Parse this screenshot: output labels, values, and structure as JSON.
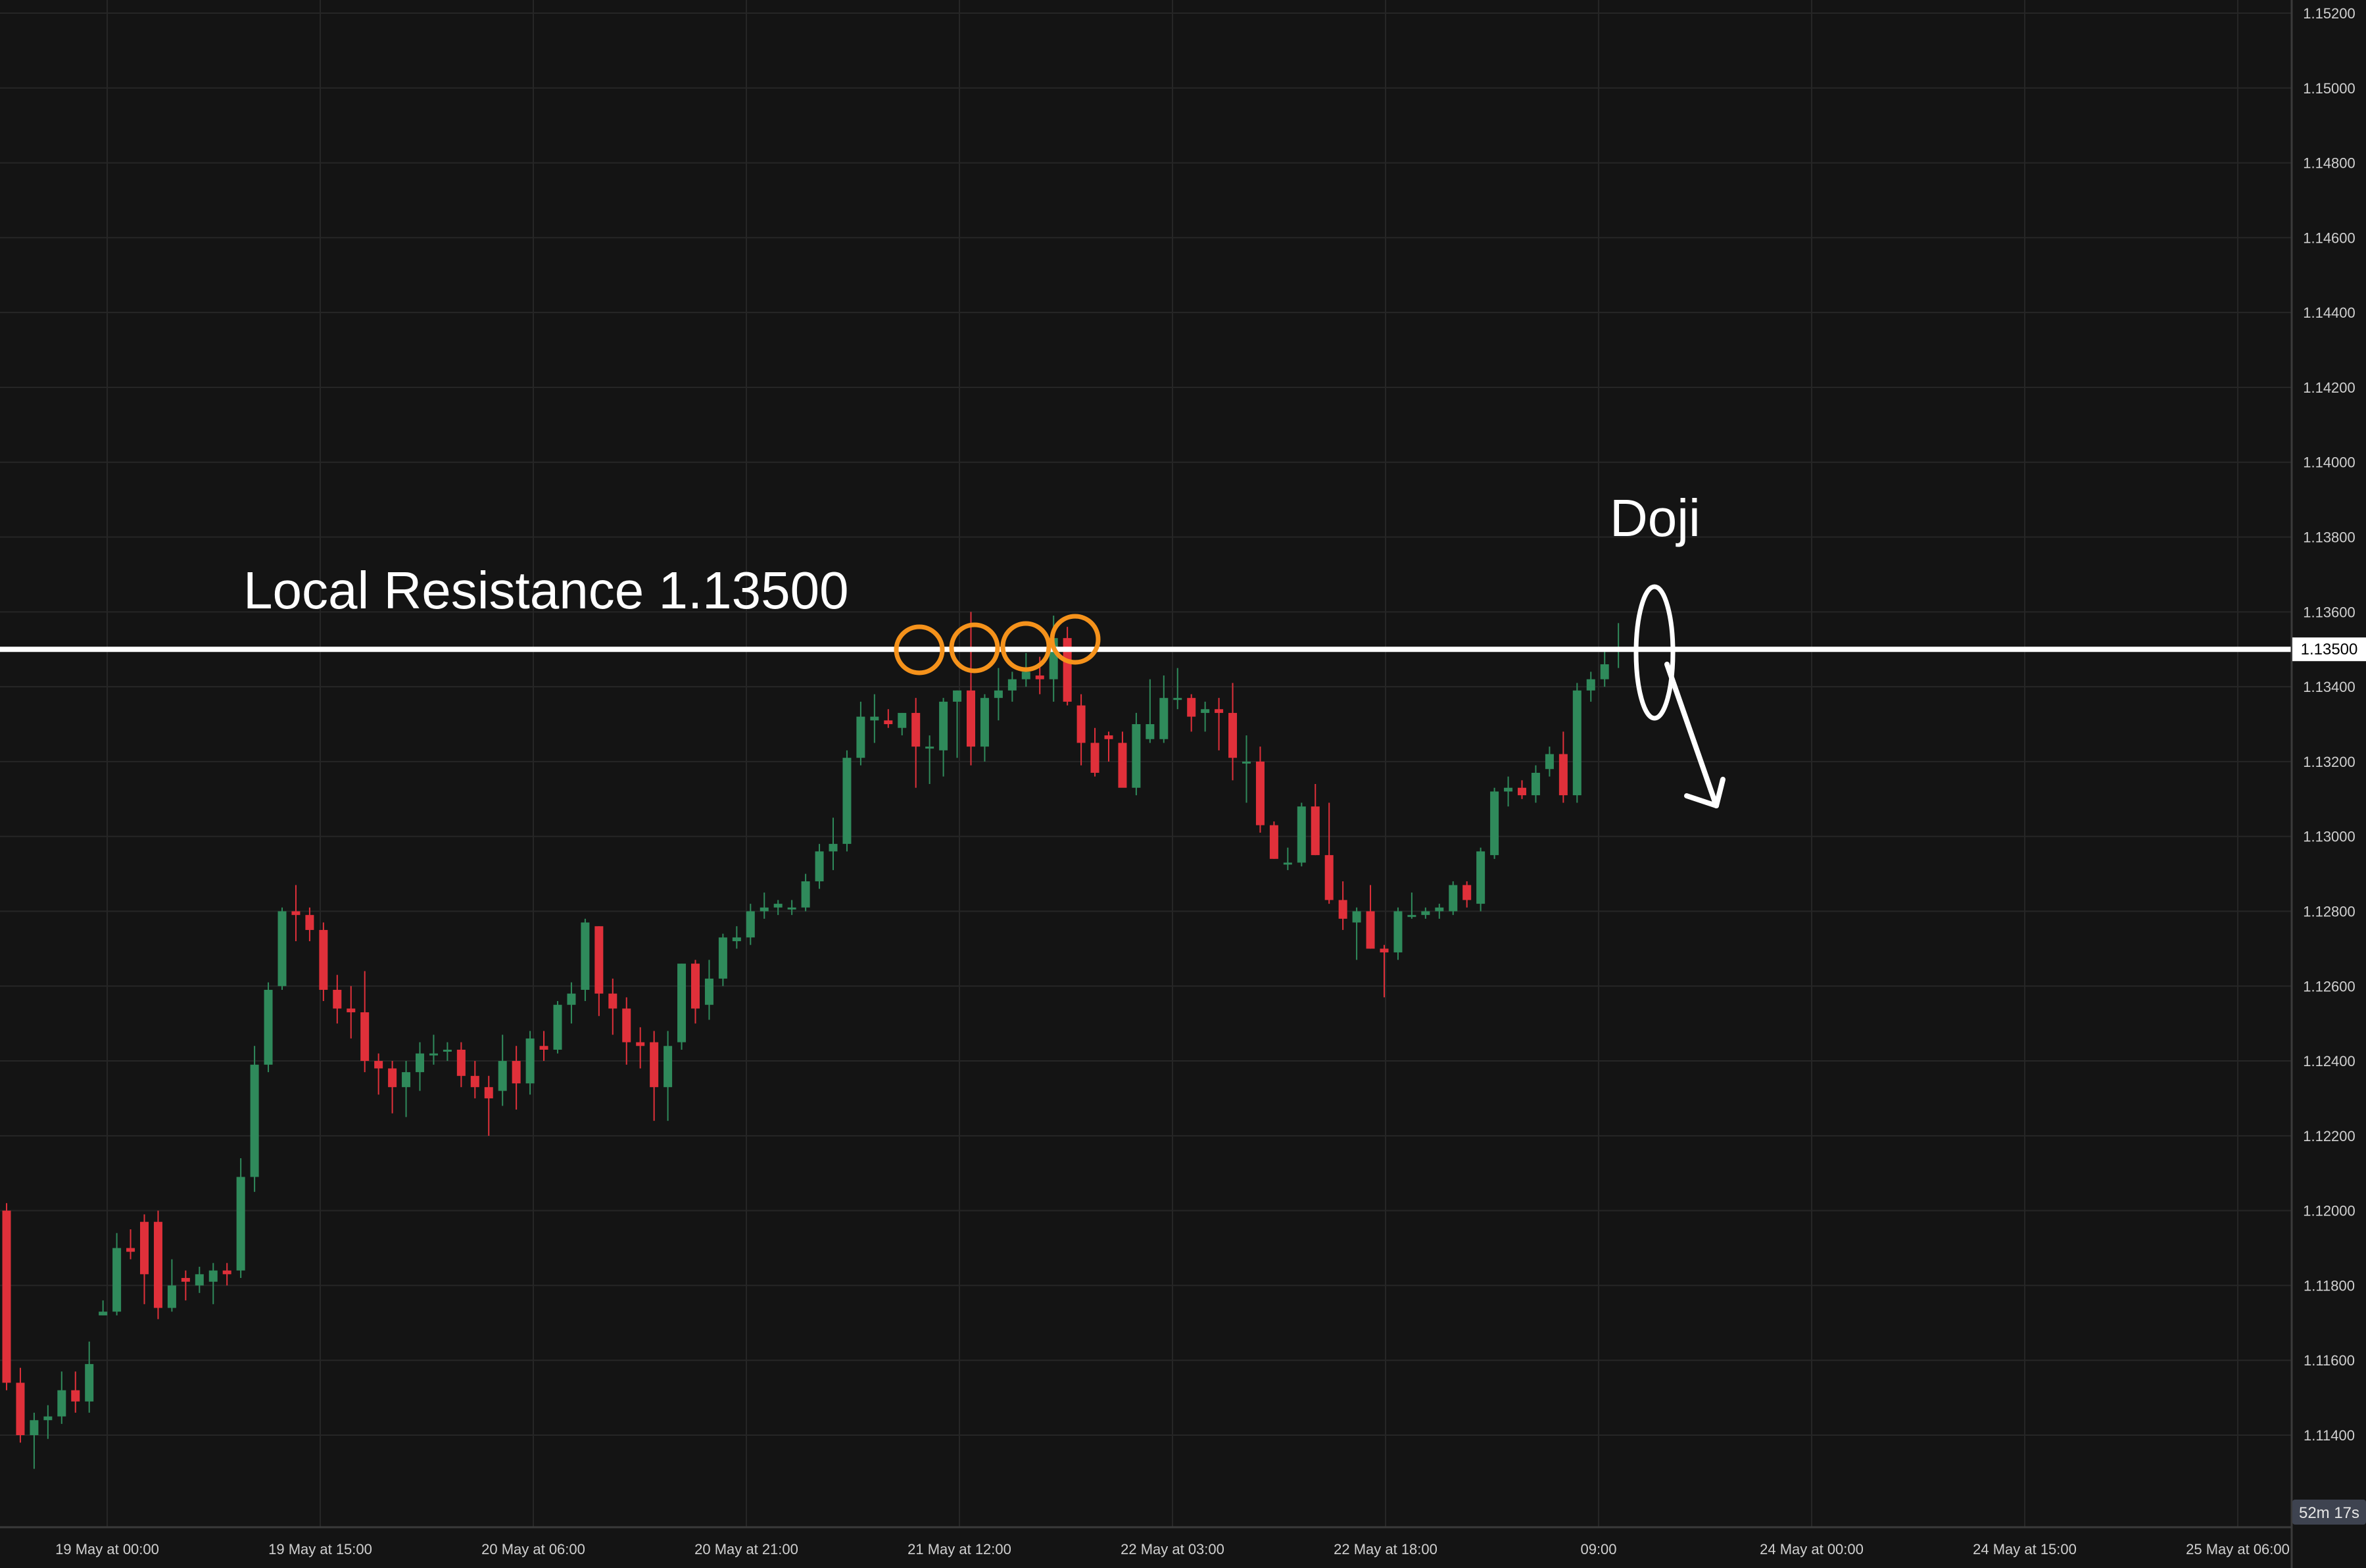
{
  "colors": {
    "background": "#141414",
    "grid": "#262626",
    "up": "#2f8a5b",
    "down": "#e0303a",
    "axis_text": "#d0d0d0",
    "resistance_line": "#ffffff",
    "marker_orange": "#f5921b"
  },
  "annotations": {
    "resistance_label": "Local Resistance 1.13500",
    "doji_label": "Doji"
  },
  "price_tag": "1.13500",
  "countdown": "52m 17s",
  "chart_data": {
    "type": "candlestick",
    "y_axis": {
      "ticks": [
        "1.15200",
        "1.15000",
        "1.14800",
        "1.14600",
        "1.14400",
        "1.14200",
        "1.14000",
        "1.13800",
        "1.13600",
        "1.13400",
        "1.13200",
        "1.13000",
        "1.12800",
        "1.12600",
        "1.12400",
        "1.12200",
        "1.12000",
        "1.11800",
        "1.11600",
        "1.11400"
      ],
      "range": [
        1.1125,
        1.1525
      ]
    },
    "x_axis": {
      "ticks": [
        "19 May at 00:00",
        "19 May at 15:00",
        "20 May at 06:00",
        "20 May at 21:00",
        "21 May at 12:00",
        "22 May at 03:00",
        "22 May at 18:00",
        "09:00",
        "24 May at 00:00",
        "24 May at 15:00",
        "25 May at 06:00"
      ]
    },
    "resistance_level": 1.135,
    "grid": true,
    "candles": [
      {
        "o": 1.12,
        "h": 1.1202,
        "l": 1.1152,
        "c": 1.1154
      },
      {
        "o": 1.1154,
        "h": 1.1158,
        "l": 1.1138,
        "c": 1.114
      },
      {
        "o": 1.114,
        "h": 1.1146,
        "l": 1.1131,
        "c": 1.1144
      },
      {
        "o": 1.1144,
        "h": 1.1148,
        "l": 1.1139,
        "c": 1.1145
      },
      {
        "o": 1.1145,
        "h": 1.1157,
        "l": 1.1143,
        "c": 1.1152
      },
      {
        "o": 1.1152,
        "h": 1.1157,
        "l": 1.1146,
        "c": 1.1149
      },
      {
        "o": 1.1149,
        "h": 1.1165,
        "l": 1.1146,
        "c": 1.1159
      },
      {
        "o": 1.1172,
        "h": 1.1176,
        "l": 1.1172,
        "c": 1.1173
      },
      {
        "o": 1.1173,
        "h": 1.1194,
        "l": 1.1172,
        "c": 1.119
      },
      {
        "o": 1.119,
        "h": 1.1195,
        "l": 1.1187,
        "c": 1.1189
      },
      {
        "o": 1.1197,
        "h": 1.1199,
        "l": 1.1175,
        "c": 1.1183
      },
      {
        "o": 1.1197,
        "h": 1.12,
        "l": 1.1171,
        "c": 1.1174
      },
      {
        "o": 1.1174,
        "h": 1.1187,
        "l": 1.1173,
        "c": 1.118
      },
      {
        "o": 1.1182,
        "h": 1.1184,
        "l": 1.1176,
        "c": 1.1181
      },
      {
        "o": 1.118,
        "h": 1.1185,
        "l": 1.1178,
        "c": 1.1183
      },
      {
        "o": 1.1181,
        "h": 1.1186,
        "l": 1.1175,
        "c": 1.1184
      },
      {
        "o": 1.1184,
        "h": 1.1186,
        "l": 1.118,
        "c": 1.1183
      },
      {
        "o": 1.1184,
        "h": 1.1214,
        "l": 1.1182,
        "c": 1.1209
      },
      {
        "o": 1.1209,
        "h": 1.1244,
        "l": 1.1205,
        "c": 1.1239
      },
      {
        "o": 1.1239,
        "h": 1.1261,
        "l": 1.1237,
        "c": 1.1259
      },
      {
        "o": 1.126,
        "h": 1.1281,
        "l": 1.1259,
        "c": 1.128
      },
      {
        "o": 1.128,
        "h": 1.1287,
        "l": 1.1272,
        "c": 1.1279
      },
      {
        "o": 1.1279,
        "h": 1.1281,
        "l": 1.1272,
        "c": 1.1275
      },
      {
        "o": 1.1275,
        "h": 1.1277,
        "l": 1.1256,
        "c": 1.1259
      },
      {
        "o": 1.1259,
        "h": 1.1263,
        "l": 1.125,
        "c": 1.1254
      },
      {
        "o": 1.1254,
        "h": 1.126,
        "l": 1.1246,
        "c": 1.1253
      },
      {
        "o": 1.1253,
        "h": 1.1264,
        "l": 1.1237,
        "c": 1.124
      },
      {
        "o": 1.124,
        "h": 1.1242,
        "l": 1.1231,
        "c": 1.1238
      },
      {
        "o": 1.1238,
        "h": 1.124,
        "l": 1.1226,
        "c": 1.1233
      },
      {
        "o": 1.1233,
        "h": 1.124,
        "l": 1.1225,
        "c": 1.1237
      },
      {
        "o": 1.1237,
        "h": 1.1245,
        "l": 1.1232,
        "c": 1.1242
      },
      {
        "o": 1.1242,
        "h": 1.1247,
        "l": 1.1239,
        "c": 1.1242
      },
      {
        "o": 1.1243,
        "h": 1.1245,
        "l": 1.124,
        "c": 1.1243
      },
      {
        "o": 1.1243,
        "h": 1.1245,
        "l": 1.1233,
        "c": 1.1236
      },
      {
        "o": 1.1236,
        "h": 1.124,
        "l": 1.123,
        "c": 1.1233
      },
      {
        "o": 1.1233,
        "h": 1.1236,
        "l": 1.122,
        "c": 1.123
      },
      {
        "o": 1.1232,
        "h": 1.1247,
        "l": 1.1228,
        "c": 1.124
      },
      {
        "o": 1.124,
        "h": 1.1244,
        "l": 1.1227,
        "c": 1.1234
      },
      {
        "o": 1.1234,
        "h": 1.1248,
        "l": 1.1231,
        "c": 1.1246
      },
      {
        "o": 1.1244,
        "h": 1.1248,
        "l": 1.124,
        "c": 1.1243
      },
      {
        "o": 1.1243,
        "h": 1.1256,
        "l": 1.1242,
        "c": 1.1255
      },
      {
        "o": 1.1255,
        "h": 1.1261,
        "l": 1.125,
        "c": 1.1258
      },
      {
        "o": 1.1259,
        "h": 1.1278,
        "l": 1.1256,
        "c": 1.1277
      },
      {
        "o": 1.1276,
        "h": 1.1276,
        "l": 1.1252,
        "c": 1.1258
      },
      {
        "o": 1.1258,
        "h": 1.1262,
        "l": 1.1247,
        "c": 1.1254
      },
      {
        "o": 1.1254,
        "h": 1.1257,
        "l": 1.1239,
        "c": 1.1245
      },
      {
        "o": 1.1245,
        "h": 1.1249,
        "l": 1.1238,
        "c": 1.1244
      },
      {
        "o": 1.1245,
        "h": 1.1248,
        "l": 1.1224,
        "c": 1.1233
      },
      {
        "o": 1.1233,
        "h": 1.1248,
        "l": 1.1224,
        "c": 1.1244
      },
      {
        "o": 1.1245,
        "h": 1.1266,
        "l": 1.1243,
        "c": 1.1266
      },
      {
        "o": 1.1266,
        "h": 1.1267,
        "l": 1.125,
        "c": 1.1254
      },
      {
        "o": 1.1255,
        "h": 1.1267,
        "l": 1.1251,
        "c": 1.1262
      },
      {
        "o": 1.1262,
        "h": 1.1274,
        "l": 1.126,
        "c": 1.1273
      },
      {
        "o": 1.1272,
        "h": 1.1276,
        "l": 1.127,
        "c": 1.1273
      },
      {
        "o": 1.1273,
        "h": 1.1282,
        "l": 1.1271,
        "c": 1.128
      },
      {
        "o": 1.128,
        "h": 1.1285,
        "l": 1.1278,
        "c": 1.1281
      },
      {
        "o": 1.1281,
        "h": 1.1283,
        "l": 1.1279,
        "c": 1.1282
      },
      {
        "o": 1.1281,
        "h": 1.1283,
        "l": 1.1279,
        "c": 1.1281
      },
      {
        "o": 1.1281,
        "h": 1.129,
        "l": 1.128,
        "c": 1.1288
      },
      {
        "o": 1.1288,
        "h": 1.1298,
        "l": 1.1286,
        "c": 1.1296
      },
      {
        "o": 1.1296,
        "h": 1.1305,
        "l": 1.1291,
        "c": 1.1298
      },
      {
        "o": 1.1298,
        "h": 1.1323,
        "l": 1.1296,
        "c": 1.1321
      },
      {
        "o": 1.1321,
        "h": 1.1336,
        "l": 1.1319,
        "c": 1.1332
      },
      {
        "o": 1.1331,
        "h": 1.1338,
        "l": 1.1325,
        "c": 1.1332
      },
      {
        "o": 1.1331,
        "h": 1.1334,
        "l": 1.1329,
        "c": 1.133
      },
      {
        "o": 1.1329,
        "h": 1.1333,
        "l": 1.1327,
        "c": 1.1333
      },
      {
        "o": 1.1333,
        "h": 1.1337,
        "l": 1.1313,
        "c": 1.1324
      },
      {
        "o": 1.1324,
        "h": 1.1327,
        "l": 1.1314,
        "c": 1.1324
      },
      {
        "o": 1.1323,
        "h": 1.1337,
        "l": 1.1316,
        "c": 1.1336
      },
      {
        "o": 1.1336,
        "h": 1.1339,
        "l": 1.1321,
        "c": 1.1339
      },
      {
        "o": 1.1339,
        "h": 1.136,
        "l": 1.1319,
        "c": 1.1324
      },
      {
        "o": 1.1324,
        "h": 1.1338,
        "l": 1.132,
        "c": 1.1337
      },
      {
        "o": 1.1337,
        "h": 1.1345,
        "l": 1.1331,
        "c": 1.1339
      },
      {
        "o": 1.1339,
        "h": 1.1344,
        "l": 1.1336,
        "c": 1.1342
      },
      {
        "o": 1.1342,
        "h": 1.1349,
        "l": 1.134,
        "c": 1.1344
      },
      {
        "o": 1.1343,
        "h": 1.1348,
        "l": 1.1338,
        "c": 1.1342
      },
      {
        "o": 1.1342,
        "h": 1.1359,
        "l": 1.1336,
        "c": 1.1353
      },
      {
        "o": 1.1353,
        "h": 1.1356,
        "l": 1.1335,
        "c": 1.1336
      },
      {
        "o": 1.1335,
        "h": 1.1338,
        "l": 1.1319,
        "c": 1.1325
      },
      {
        "o": 1.1325,
        "h": 1.1329,
        "l": 1.1316,
        "c": 1.1317
      },
      {
        "o": 1.1327,
        "h": 1.1328,
        "l": 1.132,
        "c": 1.1326
      },
      {
        "o": 1.1325,
        "h": 1.1328,
        "l": 1.1314,
        "c": 1.1313
      },
      {
        "o": 1.1313,
        "h": 1.1333,
        "l": 1.1311,
        "c": 1.133
      },
      {
        "o": 1.1326,
        "h": 1.1342,
        "l": 1.1325,
        "c": 1.133
      },
      {
        "o": 1.1326,
        "h": 1.1343,
        "l": 1.1325,
        "c": 1.1337
      },
      {
        "o": 1.1337,
        "h": 1.1345,
        "l": 1.1334,
        "c": 1.1337
      },
      {
        "o": 1.1337,
        "h": 1.1338,
        "l": 1.1328,
        "c": 1.1332
      },
      {
        "o": 1.1333,
        "h": 1.1336,
        "l": 1.1328,
        "c": 1.1334
      },
      {
        "o": 1.1334,
        "h": 1.1337,
        "l": 1.1323,
        "c": 1.1333
      },
      {
        "o": 1.1333,
        "h": 1.1341,
        "l": 1.1315,
        "c": 1.1321
      },
      {
        "o": 1.132,
        "h": 1.1327,
        "l": 1.1309,
        "c": 1.132
      },
      {
        "o": 1.132,
        "h": 1.1324,
        "l": 1.1301,
        "c": 1.1303
      },
      {
        "o": 1.1303,
        "h": 1.1304,
        "l": 1.1294,
        "c": 1.1294
      },
      {
        "o": 1.1293,
        "h": 1.1297,
        "l": 1.1291,
        "c": 1.1293
      },
      {
        "o": 1.1293,
        "h": 1.1309,
        "l": 1.1292,
        "c": 1.1308
      },
      {
        "o": 1.1308,
        "h": 1.1314,
        "l": 1.1295,
        "c": 1.1295
      },
      {
        "o": 1.1295,
        "h": 1.1309,
        "l": 1.1282,
        "c": 1.1283
      },
      {
        "o": 1.1283,
        "h": 1.1288,
        "l": 1.1275,
        "c": 1.1278
      },
      {
        "o": 1.1277,
        "h": 1.1281,
        "l": 1.1267,
        "c": 1.128
      },
      {
        "o": 1.128,
        "h": 1.1287,
        "l": 1.127,
        "c": 1.127
      },
      {
        "o": 1.127,
        "h": 1.1271,
        "l": 1.1257,
        "c": 1.1269
      },
      {
        "o": 1.1269,
        "h": 1.1281,
        "l": 1.1267,
        "c": 1.128
      },
      {
        "o": 1.1279,
        "h": 1.1285,
        "l": 1.1278,
        "c": 1.1279
      },
      {
        "o": 1.1279,
        "h": 1.1281,
        "l": 1.1278,
        "c": 1.128
      },
      {
        "o": 1.128,
        "h": 1.1282,
        "l": 1.1278,
        "c": 1.1281
      },
      {
        "o": 1.128,
        "h": 1.1288,
        "l": 1.1279,
        "c": 1.1287
      },
      {
        "o": 1.1287,
        "h": 1.1288,
        "l": 1.1281,
        "c": 1.1283
      },
      {
        "o": 1.1282,
        "h": 1.1297,
        "l": 1.128,
        "c": 1.1296
      },
      {
        "o": 1.1295,
        "h": 1.1313,
        "l": 1.1294,
        "c": 1.1312
      },
      {
        "o": 1.1312,
        "h": 1.1316,
        "l": 1.1308,
        "c": 1.1313
      },
      {
        "o": 1.1313,
        "h": 1.1315,
        "l": 1.131,
        "c": 1.1311
      },
      {
        "o": 1.1311,
        "h": 1.1319,
        "l": 1.1309,
        "c": 1.1317
      },
      {
        "o": 1.1318,
        "h": 1.1324,
        "l": 1.1316,
        "c": 1.1322
      },
      {
        "o": 1.1322,
        "h": 1.1328,
        "l": 1.1309,
        "c": 1.1311
      },
      {
        "o": 1.1311,
        "h": 1.1341,
        "l": 1.1309,
        "c": 1.1339
      },
      {
        "o": 1.1339,
        "h": 1.1344,
        "l": 1.1336,
        "c": 1.1342
      },
      {
        "o": 1.1342,
        "h": 1.135,
        "l": 1.134,
        "c": 1.1346
      },
      {
        "o": 1.135,
        "h": 1.1357,
        "l": 1.1345,
        "c": 1.135
      }
    ]
  }
}
